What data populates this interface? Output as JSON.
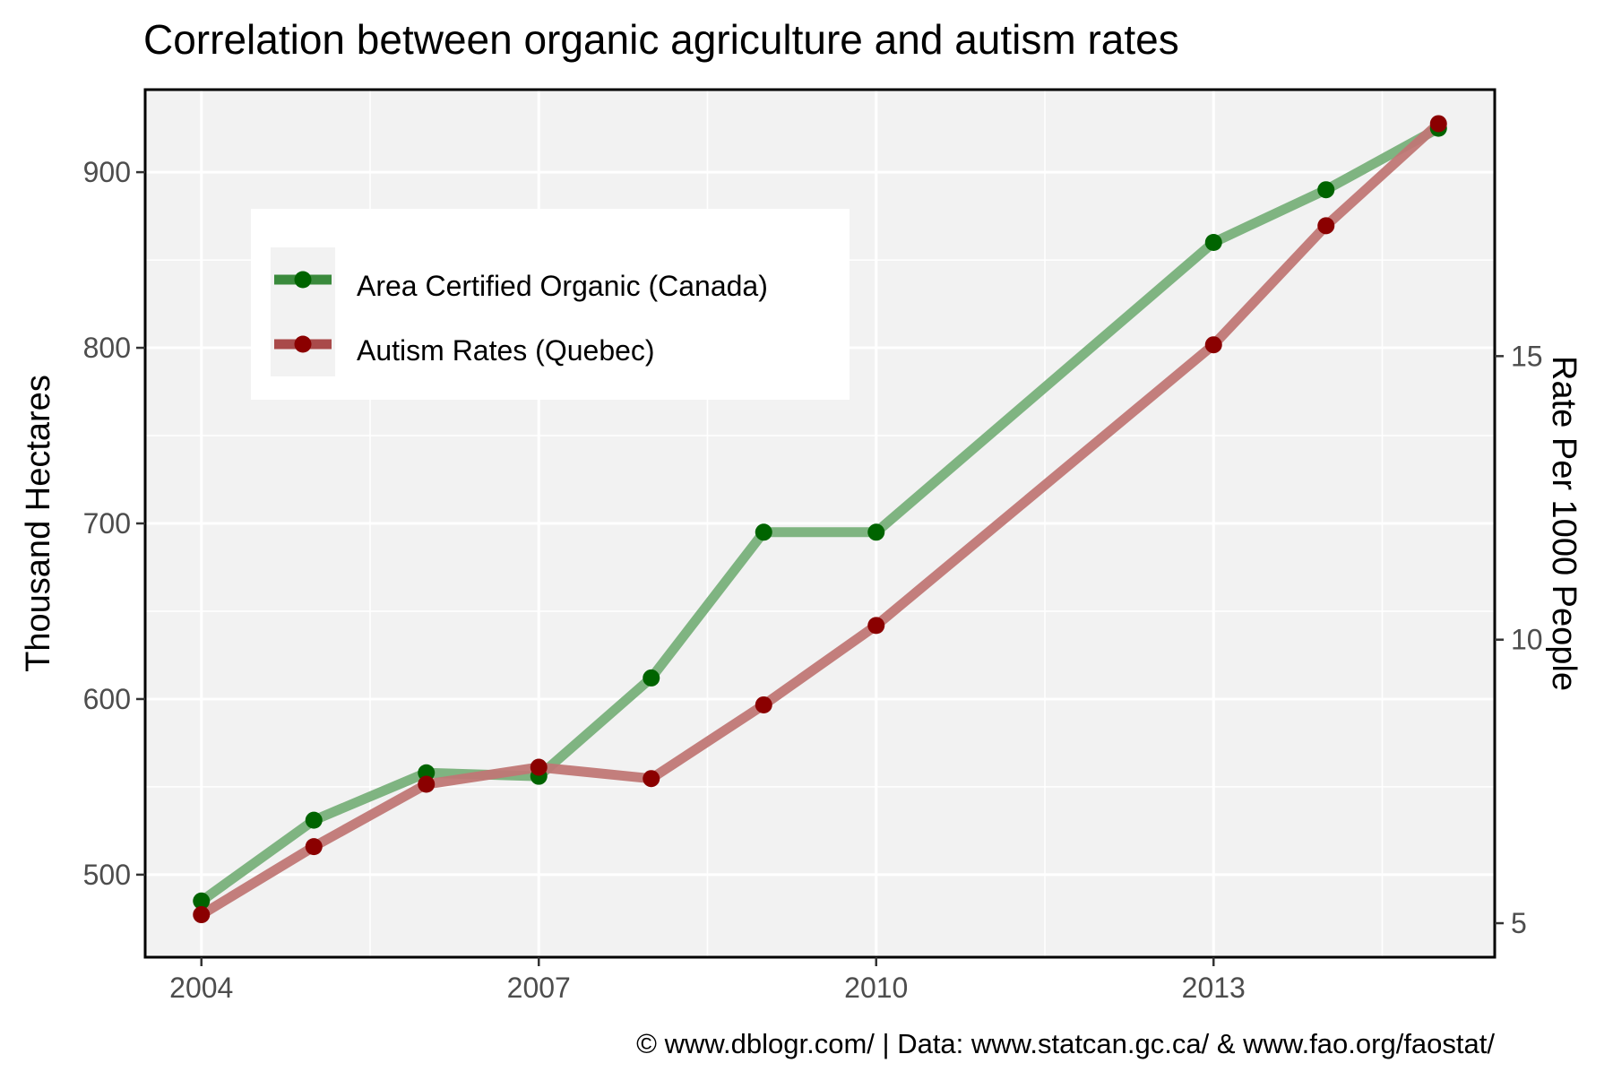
{
  "chart_data": {
    "type": "line",
    "title": "Correlation between organic agriculture and autism rates",
    "xlabel": "",
    "ylabel": "Thousand Hectares",
    "y2label": "Rate Per 1000 People",
    "caption": "© www.dblogr.com/ | Data: www.statcan.gc.ca/ & www.fao.org/faostat/",
    "x": [
      2004,
      2005,
      2006,
      2007,
      2008,
      2009,
      2010,
      2013,
      2014,
      2015
    ],
    "xlim": [
      2003.5,
      2015.5
    ],
    "xticks": [
      2004,
      2007,
      2010,
      2013
    ],
    "ylim": [
      453,
      947
    ],
    "yticks": [
      500,
      600,
      700,
      800,
      900
    ],
    "y2lim": [
      4.4,
      19.7
    ],
    "y2ticks": [
      5,
      10,
      15
    ],
    "grid": true,
    "legend_position": "top-left",
    "series": [
      {
        "name": "Area Certified Organic (Canada)",
        "axis": "left",
        "values": [
          485,
          531,
          558,
          556,
          612,
          695,
          695,
          860,
          890,
          925
        ],
        "line_color": "#78b07a",
        "point_color": "#006400",
        "legend_line_color": "#3a8a3c"
      },
      {
        "name": "Autism Rates (Quebec)",
        "axis": "right",
        "values": [
          5.15,
          6.35,
          7.45,
          7.75,
          7.55,
          8.85,
          10.25,
          15.2,
          17.3,
          19.1
        ],
        "line_color": "#c07775",
        "point_color": "#8b0000",
        "legend_line_color": "#a94a4a"
      }
    ],
    "background_color": "#f2f2f2",
    "grid_color": "#ffffff"
  }
}
